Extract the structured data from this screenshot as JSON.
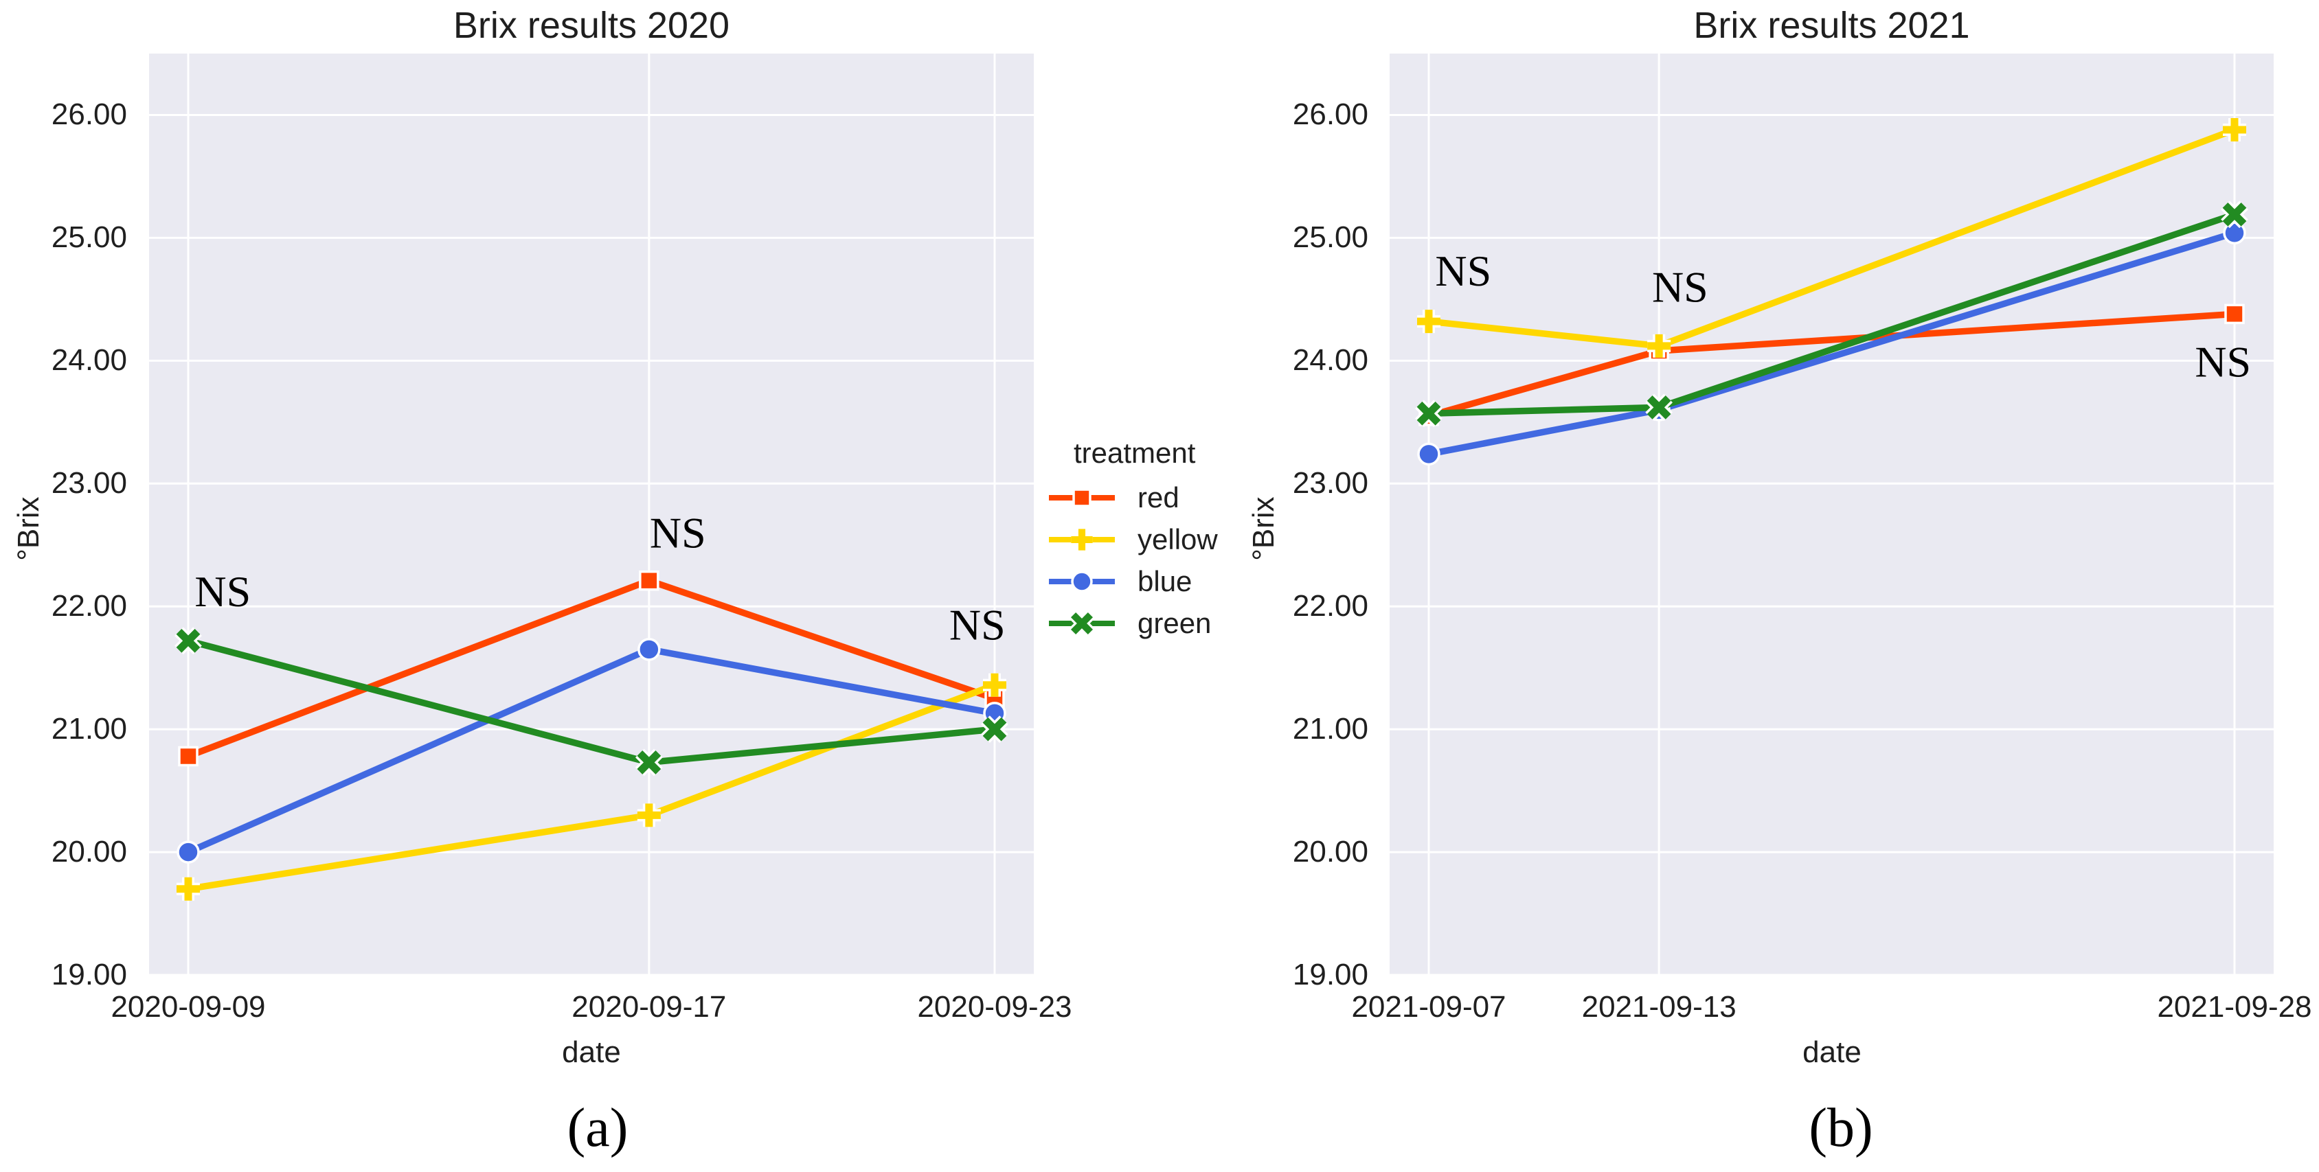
{
  "figure": {
    "background": "#ffffff",
    "plot_background": "#EAEAF2",
    "grid_color": "#ffffff",
    "text_color": "#1f1f1f",
    "annotation_color": "#000000"
  },
  "legend": {
    "title": "treatment",
    "items": [
      {
        "label": "red",
        "color": "#FF4500",
        "marker": "square"
      },
      {
        "label": "yellow",
        "color": "#FFD700",
        "marker": "plus"
      },
      {
        "label": "blue",
        "color": "#4169E1",
        "marker": "circle"
      },
      {
        "label": "green",
        "color": "#228B22",
        "marker": "x"
      }
    ]
  },
  "chart_data": [
    {
      "type": "line",
      "title": "Brix results 2020",
      "caption": "(a)",
      "xlabel": "date",
      "ylabel": "°Brix",
      "categories": [
        "2020-09-09",
        "2020-09-17",
        "2020-09-23"
      ],
      "x_day_offsets": [
        0,
        8,
        14
      ],
      "y_ticks": [
        "26.00",
        "25.00",
        "24.00",
        "23.00",
        "22.00",
        "21.00",
        "20.00",
        "19.00"
      ],
      "ylim": [
        19.0,
        26.5
      ],
      "grid": true,
      "legend_position": "right-of-plot",
      "series": [
        {
          "name": "red",
          "color": "#FF4500",
          "marker": "square",
          "values": [
            20.78,
            22.21,
            21.25
          ]
        },
        {
          "name": "yellow",
          "color": "#FFD700",
          "marker": "plus",
          "values": [
            19.7,
            20.3,
            21.36
          ]
        },
        {
          "name": "blue",
          "color": "#4169E1",
          "marker": "circle",
          "values": [
            20.0,
            21.65,
            21.13
          ]
        },
        {
          "name": "green",
          "color": "#228B22",
          "marker": "x",
          "values": [
            21.72,
            20.73,
            21.0
          ]
        }
      ],
      "annotations": [
        {
          "text": "NS",
          "day": 0.6,
          "value": 22.12
        },
        {
          "text": "NS",
          "day": 8.5,
          "value": 22.6
        },
        {
          "text": "NS",
          "day": 13.7,
          "value": 21.85
        }
      ]
    },
    {
      "type": "line",
      "title": "Brix results 2021",
      "caption": "(b)",
      "xlabel": "date",
      "ylabel": "°Brix",
      "categories": [
        "2021-09-07",
        "2021-09-13",
        "2021-09-28"
      ],
      "x_day_offsets": [
        0,
        6,
        21
      ],
      "y_ticks": [
        "26.00",
        "25.00",
        "24.00",
        "23.00",
        "22.00",
        "21.00",
        "20.00",
        "19.00"
      ],
      "ylim": [
        19.0,
        26.5
      ],
      "grid": true,
      "legend_position": "none",
      "series": [
        {
          "name": "red",
          "color": "#FF4500",
          "marker": "square",
          "values": [
            23.55,
            24.08,
            24.38
          ]
        },
        {
          "name": "yellow",
          "color": "#FFD700",
          "marker": "plus",
          "values": [
            24.32,
            24.12,
            25.88
          ]
        },
        {
          "name": "blue",
          "color": "#4169E1",
          "marker": "circle",
          "values": [
            23.24,
            23.6,
            25.04
          ]
        },
        {
          "name": "green",
          "color": "#228B22",
          "marker": "x",
          "values": [
            23.57,
            23.62,
            25.19
          ]
        }
      ],
      "annotations": [
        {
          "text": "NS",
          "day": 0.9,
          "value": 24.73
        },
        {
          "text": "NS",
          "day": 6.55,
          "value": 24.6
        },
        {
          "text": "NS",
          "day": 20.7,
          "value": 23.99
        }
      ]
    }
  ]
}
